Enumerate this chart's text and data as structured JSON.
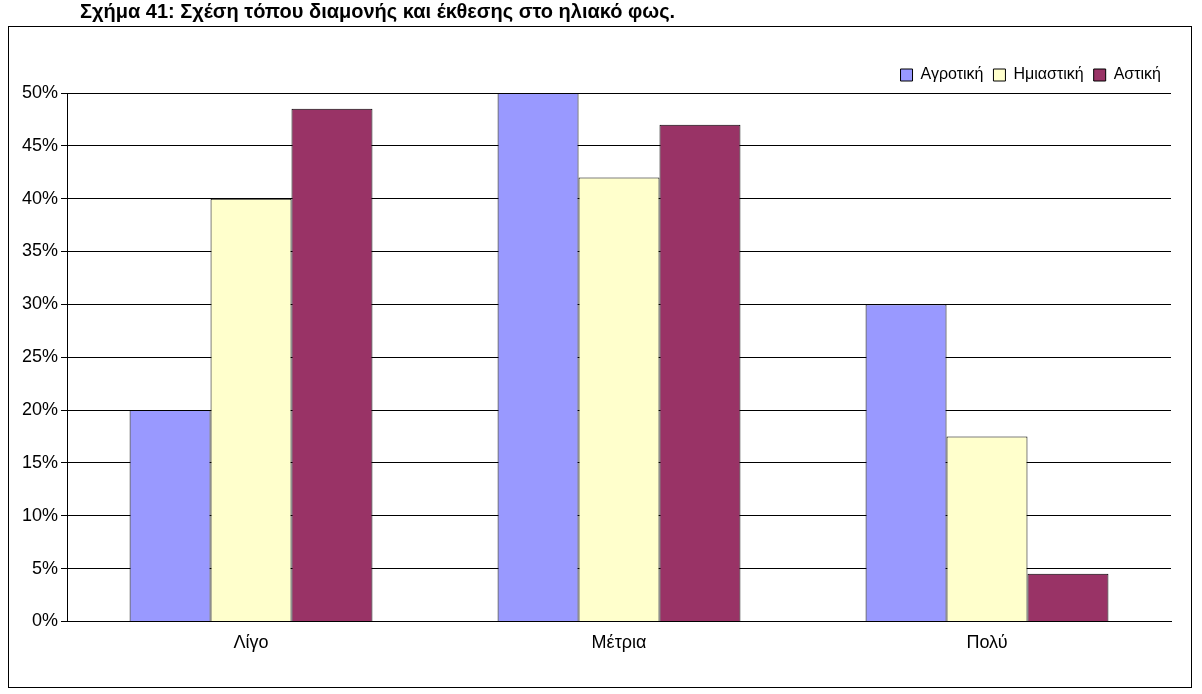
{
  "chart_data": {
    "type": "bar",
    "title": "Σχήμα 41: Σχέση τόπου διαμονής και έκθεσης στο ηλιακό φως.",
    "categories": [
      "Λίγο",
      "Μέτρια",
      "Πολύ"
    ],
    "series": [
      {
        "name": "Αγροτική",
        "color": "#9999ff",
        "values": [
          20,
          50,
          30
        ]
      },
      {
        "name": "Ημιαστική",
        "color": "#ffffcc",
        "values": [
          40,
          42,
          17.5
        ]
      },
      {
        "name": "Αστική",
        "color": "#993366",
        "values": [
          48.5,
          47,
          4.5
        ]
      }
    ],
    "ylim": [
      0,
      50
    ],
    "yticks": [
      {
        "value": 0,
        "label": "0%"
      },
      {
        "value": 5,
        "label": "5%"
      },
      {
        "value": 10,
        "label": "10%"
      },
      {
        "value": 15,
        "label": "15%"
      },
      {
        "value": 20,
        "label": "20%"
      },
      {
        "value": 25,
        "label": "25%"
      },
      {
        "value": 30,
        "label": "30%"
      },
      {
        "value": 35,
        "label": "35%"
      },
      {
        "value": 40,
        "label": "40%"
      },
      {
        "value": 45,
        "label": "45%"
      },
      {
        "value": 50,
        "label": "50%"
      }
    ],
    "grid": "y",
    "legend": "top right"
  }
}
